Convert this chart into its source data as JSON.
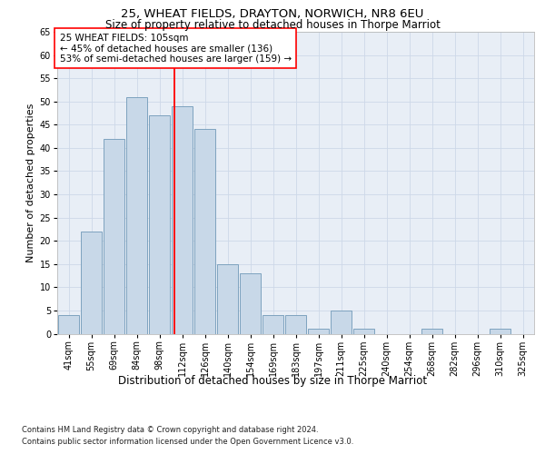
{
  "title1": "25, WHEAT FIELDS, DRAYTON, NORWICH, NR8 6EU",
  "title2": "Size of property relative to detached houses in Thorpe Marriot",
  "xlabel": "Distribution of detached houses by size in Thorpe Marriot",
  "ylabel": "Number of detached properties",
  "footnote1": "Contains HM Land Registry data © Crown copyright and database right 2024.",
  "footnote2": "Contains public sector information licensed under the Open Government Licence v3.0.",
  "categories": [
    "41sqm",
    "55sqm",
    "69sqm",
    "84sqm",
    "98sqm",
    "112sqm",
    "126sqm",
    "140sqm",
    "154sqm",
    "169sqm",
    "183sqm",
    "197sqm",
    "211sqm",
    "225sqm",
    "240sqm",
    "254sqm",
    "268sqm",
    "282sqm",
    "296sqm",
    "310sqm",
    "325sqm"
  ],
  "bar_values": [
    4,
    22,
    42,
    51,
    47,
    49,
    44,
    15,
    13,
    4,
    4,
    1,
    5,
    1,
    0,
    0,
    1,
    0,
    0,
    1,
    0
  ],
  "bar_color": "#c8d8e8",
  "bar_edge_color": "#7099b8",
  "annotation_text": "25 WHEAT FIELDS: 105sqm\n← 45% of detached houses are smaller (136)\n53% of semi-detached houses are larger (159) →",
  "annotation_box_color": "white",
  "annotation_box_edge": "red",
  "redline_x": 4.65,
  "ylim": [
    0,
    65
  ],
  "yticks": [
    0,
    5,
    10,
    15,
    20,
    25,
    30,
    35,
    40,
    45,
    50,
    55,
    60,
    65
  ],
  "grid_color": "#cdd8e8",
  "background_color": "#e8eef6",
  "title1_fontsize": 9.5,
  "title2_fontsize": 8.5,
  "xlabel_fontsize": 8.5,
  "ylabel_fontsize": 8,
  "annot_fontsize": 7.5,
  "tick_fontsize": 7,
  "footnote_fontsize": 6
}
